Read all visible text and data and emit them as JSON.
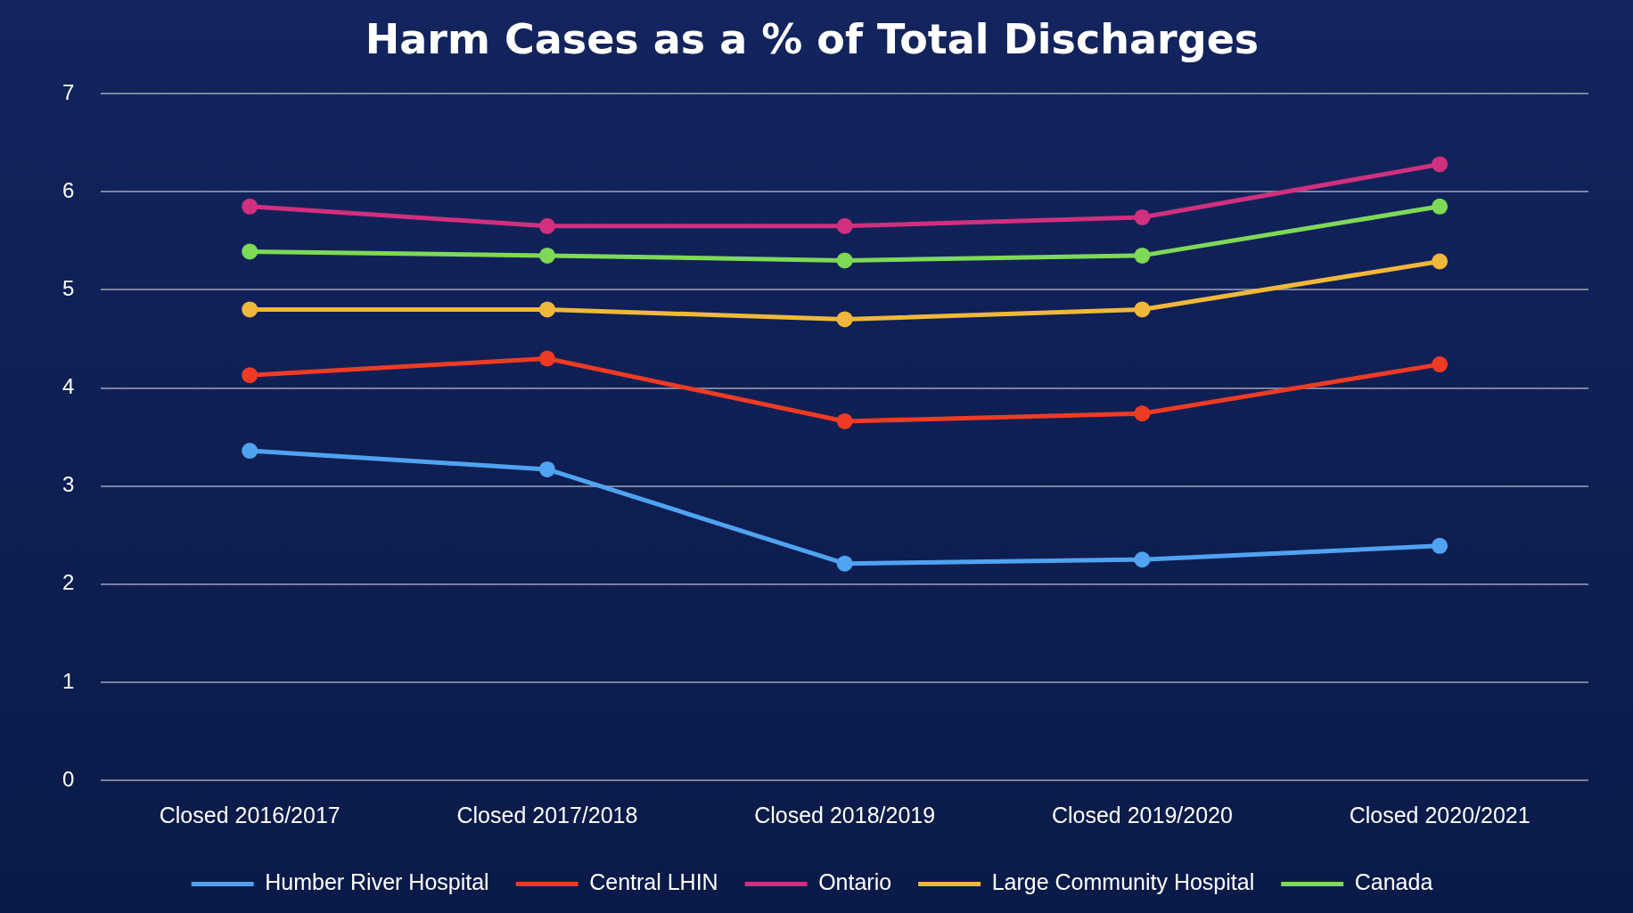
{
  "chart_data": {
    "type": "line",
    "title": "Harm Cases as a % of Total Discharges",
    "categories": [
      "Closed 2016/2017",
      "Closed 2017/2018",
      "Closed 2018/2019",
      "Closed 2019/2020",
      "Closed 2020/2021"
    ],
    "series": [
      {
        "name": "Humber River Hospital",
        "color": "#4fa3f0",
        "values": [
          3.36,
          3.17,
          2.21,
          2.25,
          2.39
        ]
      },
      {
        "name": "Central LHIN",
        "color": "#ef3b24",
        "values": [
          4.13,
          4.3,
          3.66,
          3.74,
          4.24
        ]
      },
      {
        "name": "Ontario",
        "color": "#d0307e",
        "values": [
          5.85,
          5.65,
          5.65,
          5.74,
          6.28
        ]
      },
      {
        "name": "Large Community Hospital",
        "color": "#f0b83a",
        "values": [
          4.8,
          4.8,
          4.7,
          4.8,
          5.29
        ]
      },
      {
        "name": "Canada",
        "color": "#7ed957",
        "values": [
          5.39,
          5.35,
          5.3,
          5.35,
          5.85
        ]
      }
    ],
    "ylim": [
      0,
      7
    ],
    "yticks": [
      0,
      1,
      2,
      3,
      4,
      5,
      6,
      7
    ],
    "grid": "y",
    "legend": "bottom",
    "marker": "circle",
    "line_style": "solid"
  }
}
